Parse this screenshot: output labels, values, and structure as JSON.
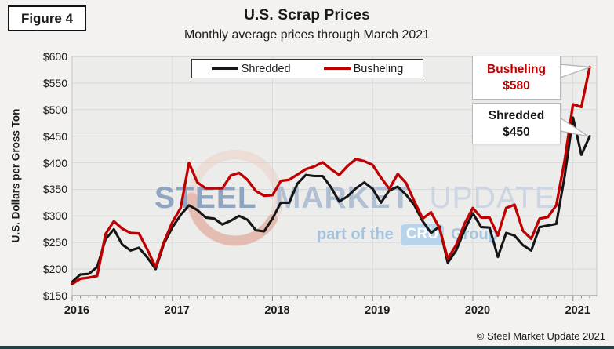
{
  "figure_label": "Figure 4",
  "header": {
    "title": "U.S. Scrap Prices",
    "subtitle": "Monthly average prices through March 2021"
  },
  "watermark": {
    "words": [
      "STEEL",
      "MARKET",
      "UPDATE"
    ],
    "tagline_prefix": "part of the",
    "tagline_box": "CRU",
    "tagline_suffix": "Group",
    "text_colors": [
      "#8fa4c0",
      "#b1bfd3",
      "#ccd5e2"
    ],
    "swoosh_color": "#dd9c8b",
    "cru_box_color": "#b7d4ea"
  },
  "legend": {
    "items": [
      {
        "label": "Shredded",
        "color": "#161616"
      },
      {
        "label": "Busheling",
        "color": "#c00000"
      }
    ]
  },
  "callouts": [
    {
      "id": "busheling",
      "label": "Busheling",
      "value": "$580",
      "color": "#c00000"
    },
    {
      "id": "shredded",
      "label": "Shredded",
      "value": "$450",
      "color": "#161616"
    }
  ],
  "footer": {
    "copyright": "© Steel Market Update 2021"
  },
  "chart_data": {
    "type": "line",
    "title": "U.S. Scrap Prices",
    "subtitle": "Monthly average prices through March 2021",
    "ylabel": "U.S. Dollars per Gross Ton",
    "xlabel": "",
    "x_start": "2016-01",
    "x_end": "2021-03",
    "x_frequency": "monthly",
    "x_year_labels": [
      "2016",
      "2017",
      "2018",
      "2019",
      "2020",
      "2021"
    ],
    "y_ticks": [
      600,
      550,
      500,
      450,
      400,
      350,
      300,
      250,
      200,
      150
    ],
    "y_tick_prefix": "$",
    "ylim": [
      150,
      600
    ],
    "grid": true,
    "legend_position": "top-center",
    "series": [
      {
        "name": "Shredded",
        "color": "#161616",
        "values": [
          176,
          190,
          191,
          204,
          256,
          275,
          246,
          235,
          240,
          222,
          200,
          248,
          278,
          302,
          320,
          311,
          297,
          295,
          284,
          291,
          300,
          293,
          273,
          271,
          295,
          325,
          325,
          361,
          377,
          375,
          375,
          354,
          327,
          337,
          352,
          363,
          351,
          325,
          348,
          355,
          340,
          320,
          290,
          268,
          280,
          212,
          235,
          273,
          305,
          279,
          278,
          223,
          268,
          263,
          245,
          235,
          279,
          282,
          285,
          375,
          485,
          415,
          450
        ]
      },
      {
        "name": "Busheling",
        "color": "#c00000",
        "values": [
          172,
          182,
          184,
          187,
          266,
          290,
          276,
          268,
          267,
          237,
          204,
          251,
          288,
          315,
          400,
          363,
          352,
          352,
          352,
          376,
          381,
          368,
          347,
          338,
          339,
          366,
          368,
          378,
          388,
          393,
          401,
          388,
          377,
          394,
          407,
          403,
          396,
          372,
          351,
          379,
          362,
          327,
          295,
          307,
          277,
          220,
          245,
          285,
          315,
          297,
          297,
          263,
          315,
          321,
          272,
          257,
          295,
          298,
          320,
          405,
          510,
          505,
          580
        ]
      }
    ],
    "end_annotations": [
      {
        "series": "Busheling",
        "text": "Busheling $580"
      },
      {
        "series": "Shredded",
        "text": "Shredded $450"
      }
    ]
  }
}
